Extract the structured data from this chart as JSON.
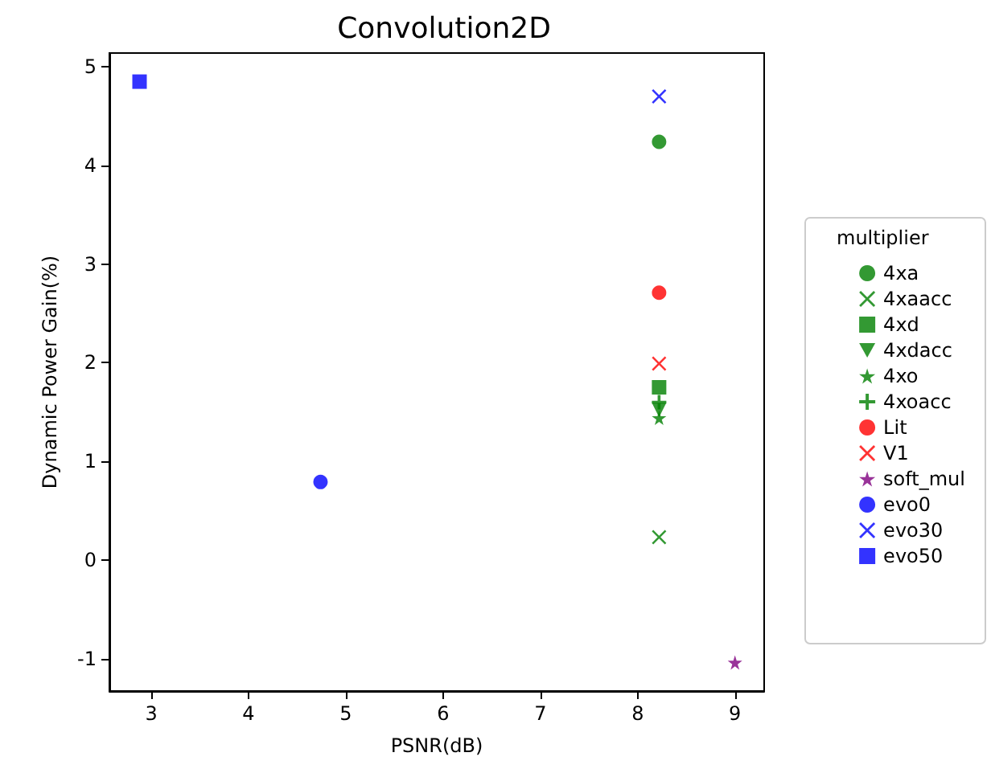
{
  "chart_data": {
    "type": "scatter",
    "title": "Convolution2D",
    "xlabel": "PSNR(dB)",
    "ylabel": "Dynamic Power Gain(%)",
    "legend_title": "multiplier",
    "legend": "right",
    "grid": false,
    "xlim": [
      2.57,
      9.3
    ],
    "xticks": [
      3,
      4,
      5,
      6,
      7,
      8,
      9
    ],
    "ylim": [
      -1.33,
      5.14
    ],
    "yticks": [
      -1,
      0,
      1,
      2,
      3,
      4,
      5
    ],
    "series": [
      {
        "name": "4xa",
        "color": "#008000",
        "marker": "circle",
        "x": [
          8.22
        ],
        "values": [
          4.24
        ]
      },
      {
        "name": "4xaacc",
        "color": "#008000",
        "marker": "cross",
        "x": [
          8.22
        ],
        "values": [
          0.23
        ]
      },
      {
        "name": "4xd",
        "color": "#008000",
        "marker": "square",
        "x": [
          8.22
        ],
        "values": [
          1.75
        ]
      },
      {
        "name": "4xdacc",
        "color": "#008000",
        "marker": "triangle_down",
        "x": [
          8.22
        ],
        "values": [
          1.52
        ]
      },
      {
        "name": "4xo",
        "color": "#008000",
        "marker": "star",
        "x": [
          8.22
        ],
        "values": [
          1.44
        ]
      },
      {
        "name": "4xoacc",
        "color": "#008000",
        "marker": "plus",
        "x": [
          8.22
        ],
        "values": [
          1.6
        ]
      },
      {
        "name": "Lit",
        "color": "#ff0000",
        "marker": "circle",
        "x": [
          8.22
        ],
        "values": [
          2.71
        ]
      },
      {
        "name": "V1",
        "color": "#ff0000",
        "marker": "cross",
        "x": [
          8.22
        ],
        "values": [
          1.99
        ]
      },
      {
        "name": "soft_mul",
        "color": "#800080",
        "marker": "star",
        "x": [
          9.0
        ],
        "values": [
          -1.04
        ]
      },
      {
        "name": "evo0",
        "color": "#0000ff",
        "marker": "circle",
        "x": [
          4.74
        ],
        "values": [
          0.79
        ]
      },
      {
        "name": "evo30",
        "color": "#0000ff",
        "marker": "cross",
        "x": [
          8.22
        ],
        "values": [
          4.7
        ]
      },
      {
        "name": "evo50",
        "color": "#0000ff",
        "marker": "square",
        "x": [
          2.88
        ],
        "values": [
          4.85
        ]
      }
    ]
  }
}
